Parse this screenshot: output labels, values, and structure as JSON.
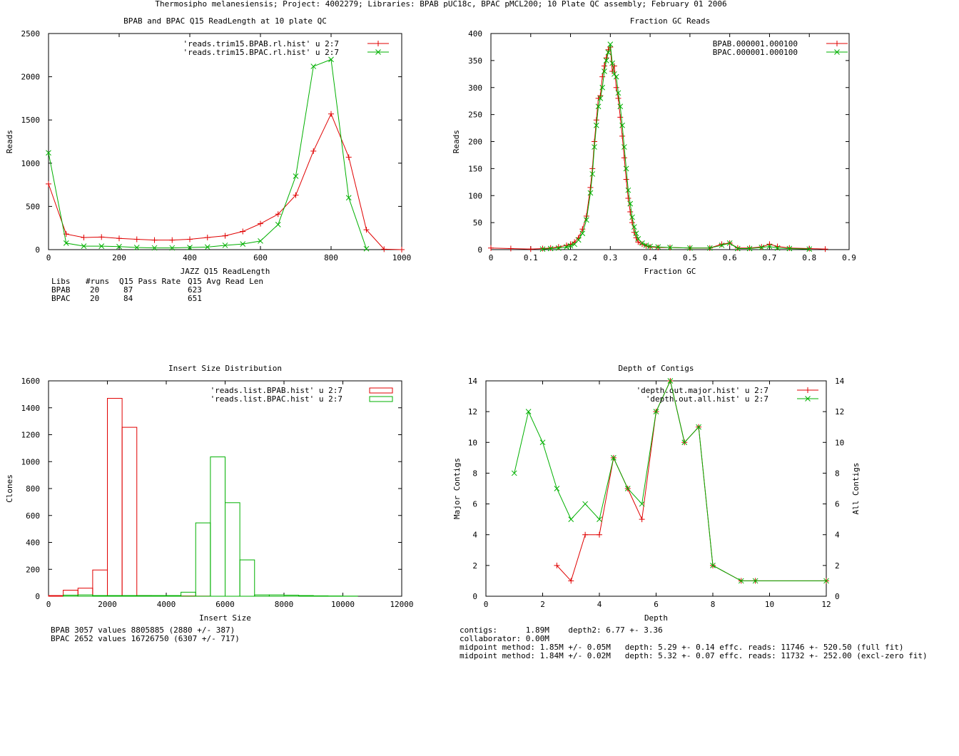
{
  "page_title": "Thermosipho melanesiensis; Project: 4002279; Libraries: BPAB pUC18c, BPAC pMCL200; 10 Plate QC assembly; February 01 2006",
  "colors": {
    "red": "#e00000",
    "green": "#00b000",
    "black": "#000000"
  },
  "chart_data": [
    {
      "id": "readlength",
      "type": "line",
      "title": "BPAB and BPAC Q15 ReadLength at 10 plate QC",
      "xlabel": "JAZZ Q15 ReadLength",
      "ylabel": "Reads",
      "xlim": [
        0,
        1000
      ],
      "ylim": [
        0,
        2500
      ],
      "xticks": [
        0,
        200,
        400,
        600,
        800,
        1000
      ],
      "yticks": [
        0,
        500,
        1000,
        1500,
        2000,
        2500
      ],
      "legend_position": "top-right",
      "series": [
        {
          "name": "'reads.trim15.BPAB.rl.hist' u 2:7",
          "color": "#e00000",
          "marker": "plus",
          "x": [
            0,
            50,
            100,
            150,
            200,
            250,
            300,
            350,
            400,
            450,
            500,
            550,
            600,
            650,
            700,
            750,
            800,
            850,
            900,
            950,
            1000
          ],
          "y": [
            760,
            180,
            140,
            145,
            130,
            120,
            110,
            110,
            120,
            140,
            160,
            210,
            300,
            410,
            630,
            1140,
            1570,
            1070,
            230,
            5,
            0
          ]
        },
        {
          "name": "'reads.trim15.BPAC.rl.hist' u 2:7",
          "color": "#00b000",
          "marker": "cross",
          "x": [
            0,
            50,
            100,
            150,
            200,
            250,
            300,
            350,
            400,
            450,
            500,
            550,
            600,
            650,
            700,
            750,
            800,
            850,
            900
          ],
          "y": [
            1120,
            75,
            40,
            40,
            35,
            25,
            20,
            20,
            25,
            30,
            50,
            65,
            100,
            290,
            850,
            2120,
            2200,
            600,
            10
          ]
        }
      ],
      "stats": {
        "header": [
          "Libs",
          "#runs",
          "Q15 Pass Rate",
          "Q15 Avg Read Len"
        ],
        "rows": [
          [
            "BPAB",
            "20",
            "87",
            "623"
          ],
          [
            "BPAC",
            "20",
            "84",
            "651"
          ]
        ]
      }
    },
    {
      "id": "gc",
      "type": "line",
      "title": "Fraction GC Reads",
      "xlabel": "Fraction GC",
      "ylabel": "Reads",
      "xlim": [
        0,
        0.9
      ],
      "ylim": [
        0,
        400
      ],
      "xticks": [
        0,
        0.1,
        0.2,
        0.3,
        0.4,
        0.5,
        0.6,
        0.7,
        0.8,
        0.9
      ],
      "yticks": [
        0,
        50,
        100,
        150,
        200,
        250,
        300,
        350,
        400
      ],
      "legend_position": "top-right",
      "series": [
        {
          "name": "BPAB.000001.000100",
          "color": "#e00000",
          "marker": "plus",
          "x": [
            0,
            0.05,
            0.1,
            0.13,
            0.15,
            0.17,
            0.19,
            0.2,
            0.21,
            0.22,
            0.23,
            0.24,
            0.25,
            0.255,
            0.26,
            0.265,
            0.27,
            0.275,
            0.28,
            0.285,
            0.29,
            0.295,
            0.3,
            0.305,
            0.31,
            0.315,
            0.32,
            0.325,
            0.33,
            0.335,
            0.34,
            0.345,
            0.35,
            0.355,
            0.36,
            0.365,
            0.37,
            0.38,
            0.39,
            0.4,
            0.42,
            0.45,
            0.5,
            0.55,
            0.58,
            0.6,
            0.62,
            0.65,
            0.68,
            0.7,
            0.72,
            0.75,
            0.8,
            0.84
          ],
          "y": [
            3,
            2,
            1,
            2,
            3,
            5,
            8,
            10,
            14,
            22,
            38,
            62,
            115,
            150,
            200,
            240,
            280,
            285,
            320,
            340,
            355,
            370,
            375,
            330,
            340,
            300,
            280,
            245,
            210,
            170,
            130,
            95,
            70,
            50,
            32,
            22,
            14,
            10,
            7,
            5,
            4,
            4,
            3,
            3,
            10,
            12,
            3,
            3,
            5,
            10,
            6,
            3,
            2,
            1
          ]
        },
        {
          "name": "BPAC.000001.000100",
          "color": "#00b000",
          "marker": "cross",
          "x": [
            0.13,
            0.15,
            0.17,
            0.19,
            0.2,
            0.21,
            0.22,
            0.23,
            0.24,
            0.25,
            0.255,
            0.26,
            0.265,
            0.27,
            0.275,
            0.28,
            0.285,
            0.29,
            0.295,
            0.3,
            0.305,
            0.31,
            0.315,
            0.32,
            0.325,
            0.33,
            0.335,
            0.34,
            0.345,
            0.35,
            0.355,
            0.36,
            0.365,
            0.37,
            0.38,
            0.39,
            0.4,
            0.42,
            0.45,
            0.5,
            0.55,
            0.58,
            0.6,
            0.62,
            0.65,
            0.68,
            0.7,
            0.72,
            0.75,
            0.8
          ],
          "y": [
            1,
            2,
            3,
            5,
            7,
            10,
            18,
            30,
            55,
            105,
            140,
            190,
            230,
            265,
            280,
            300,
            330,
            350,
            365,
            380,
            345,
            325,
            320,
            290,
            265,
            230,
            190,
            150,
            110,
            85,
            60,
            42,
            30,
            20,
            12,
            8,
            6,
            5,
            4,
            3,
            3,
            8,
            12,
            2,
            2,
            4,
            6,
            3,
            2,
            1
          ]
        }
      ]
    },
    {
      "id": "insert",
      "type": "bar",
      "title": "Insert Size Distribution",
      "xlabel": "Insert Size",
      "ylabel": "Clones",
      "xlim": [
        0,
        12000
      ],
      "ylim": [
        0,
        1600
      ],
      "xticks": [
        0,
        2000,
        4000,
        6000,
        8000,
        10000,
        12000
      ],
      "yticks": [
        0,
        200,
        400,
        600,
        800,
        1000,
        1200,
        1400,
        1600
      ],
      "bin_width": 500,
      "legend_position": "top-right",
      "series": [
        {
          "name": "'reads.list.BPAB.hist' u 2:7",
          "color": "#e00000",
          "x": [
            250,
            750,
            1250,
            1750,
            2250,
            2750,
            3250,
            3750,
            4250,
            4750,
            5250
          ],
          "values": [
            5,
            45,
            60,
            195,
            1470,
            1255,
            5,
            3,
            2,
            2,
            1
          ]
        },
        {
          "name": "'reads.list.BPAC.hist' u 2:7",
          "color": "#00b000",
          "x": [
            750,
            1250,
            1750,
            2250,
            2750,
            3250,
            3750,
            4250,
            4750,
            5250,
            5750,
            6250,
            6750,
            7250,
            7750,
            8250,
            8750,
            9250,
            9750,
            10250
          ],
          "values": [
            8,
            10,
            5,
            5,
            5,
            5,
            5,
            5,
            30,
            545,
            1035,
            695,
            270,
            10,
            10,
            8,
            5,
            3,
            2,
            1
          ]
        }
      ],
      "stats": [
        "BPAB 3057 values 8805885 (2880 +/- 387)",
        "BPAC 2652 values 16726750 (6307 +/- 717)"
      ]
    },
    {
      "id": "depth",
      "type": "line",
      "title": "Depth of Contigs",
      "xlabel": "Depth",
      "ylabel": "Major Contigs",
      "y2label": "All Contigs",
      "xlim": [
        0,
        12
      ],
      "ylim": [
        0,
        14
      ],
      "xticks": [
        0,
        2,
        4,
        6,
        8,
        10,
        12
      ],
      "yticks": [
        0,
        2,
        4,
        6,
        8,
        10,
        12,
        14
      ],
      "legend_position": "top-right",
      "series": [
        {
          "name": "'depth.out.major.hist' u 2:7",
          "color": "#e00000",
          "marker": "plus",
          "x": [
            2.5,
            3,
            3.5,
            4,
            4.5,
            5,
            5.5,
            6,
            6.5,
            7,
            7.5,
            8,
            9,
            9.5,
            12
          ],
          "y": [
            2,
            1,
            4,
            4,
            9,
            7,
            5,
            12,
            14,
            10,
            11,
            2,
            1,
            1,
            1
          ]
        },
        {
          "name": "'depth.out.all.hist' u 2:7",
          "color": "#00b000",
          "marker": "cross",
          "x": [
            1,
            1.5,
            2,
            2.5,
            3,
            3.5,
            4,
            4.5,
            5,
            5.5,
            6,
            6.5,
            7,
            7.5,
            8,
            9,
            9.5,
            12
          ],
          "y": [
            8,
            12,
            10,
            7,
            5,
            6,
            5,
            9,
            7,
            6,
            12,
            14,
            10,
            11,
            2,
            1,
            1,
            1
          ]
        }
      ],
      "stats": [
        "contigs:      1.89M    depth2: 6.77 +- 3.36",
        "collaborator: 0.00M",
        "midpoint method: 1.85M +/- 0.05M   depth: 5.29 +- 0.14 effc. reads: 11746 +- 520.50 (full fit)",
        "midpoint method: 1.84M +/- 0.02M   depth: 5.32 +- 0.07 effc. reads: 11732 +- 252.00 (excl-zero fit)"
      ]
    }
  ]
}
